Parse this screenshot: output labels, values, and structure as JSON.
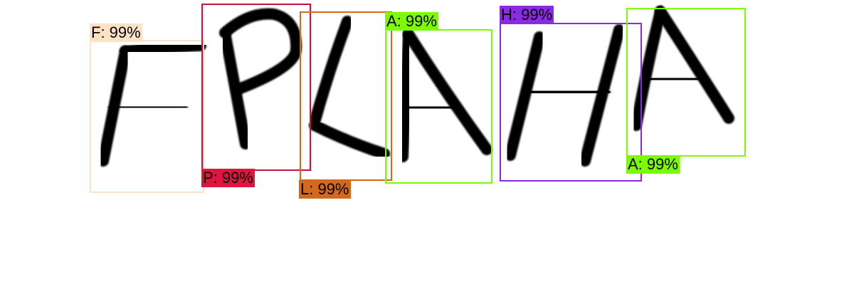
{
  "detections": [
    {
      "id": "f",
      "label": "F: 99%",
      "letter": "F",
      "confidence": "99%",
      "color": "#FAE3CA",
      "label_bg": "#FFE2C6"
    },
    {
      "id": "p",
      "label": "P: 99%",
      "letter": "P",
      "confidence": "99%",
      "color": "#C3143C",
      "label_bg": "#E0143D"
    },
    {
      "id": "l",
      "label": "L: 99%",
      "letter": "L",
      "confidence": "99%",
      "color": "#D2691E",
      "label_bg": "#D2691E"
    },
    {
      "id": "a1",
      "label": "A: 99%",
      "letter": "A",
      "confidence": "99%",
      "color": "#7CFC00",
      "label_bg": "#7CFC00"
    },
    {
      "id": "h",
      "label": "H: 99%",
      "letter": "H",
      "confidence": "99%",
      "color": "#8A2BE2",
      "label_bg": "#8A2BE2"
    },
    {
      "id": "a2",
      "label": "A: 99%",
      "letter": "A",
      "confidence": "99%",
      "color": "#7CFC00",
      "label_bg": "#7CFC00"
    }
  ],
  "colors": {
    "background": "#FFFFFF",
    "ink": "#000000"
  }
}
